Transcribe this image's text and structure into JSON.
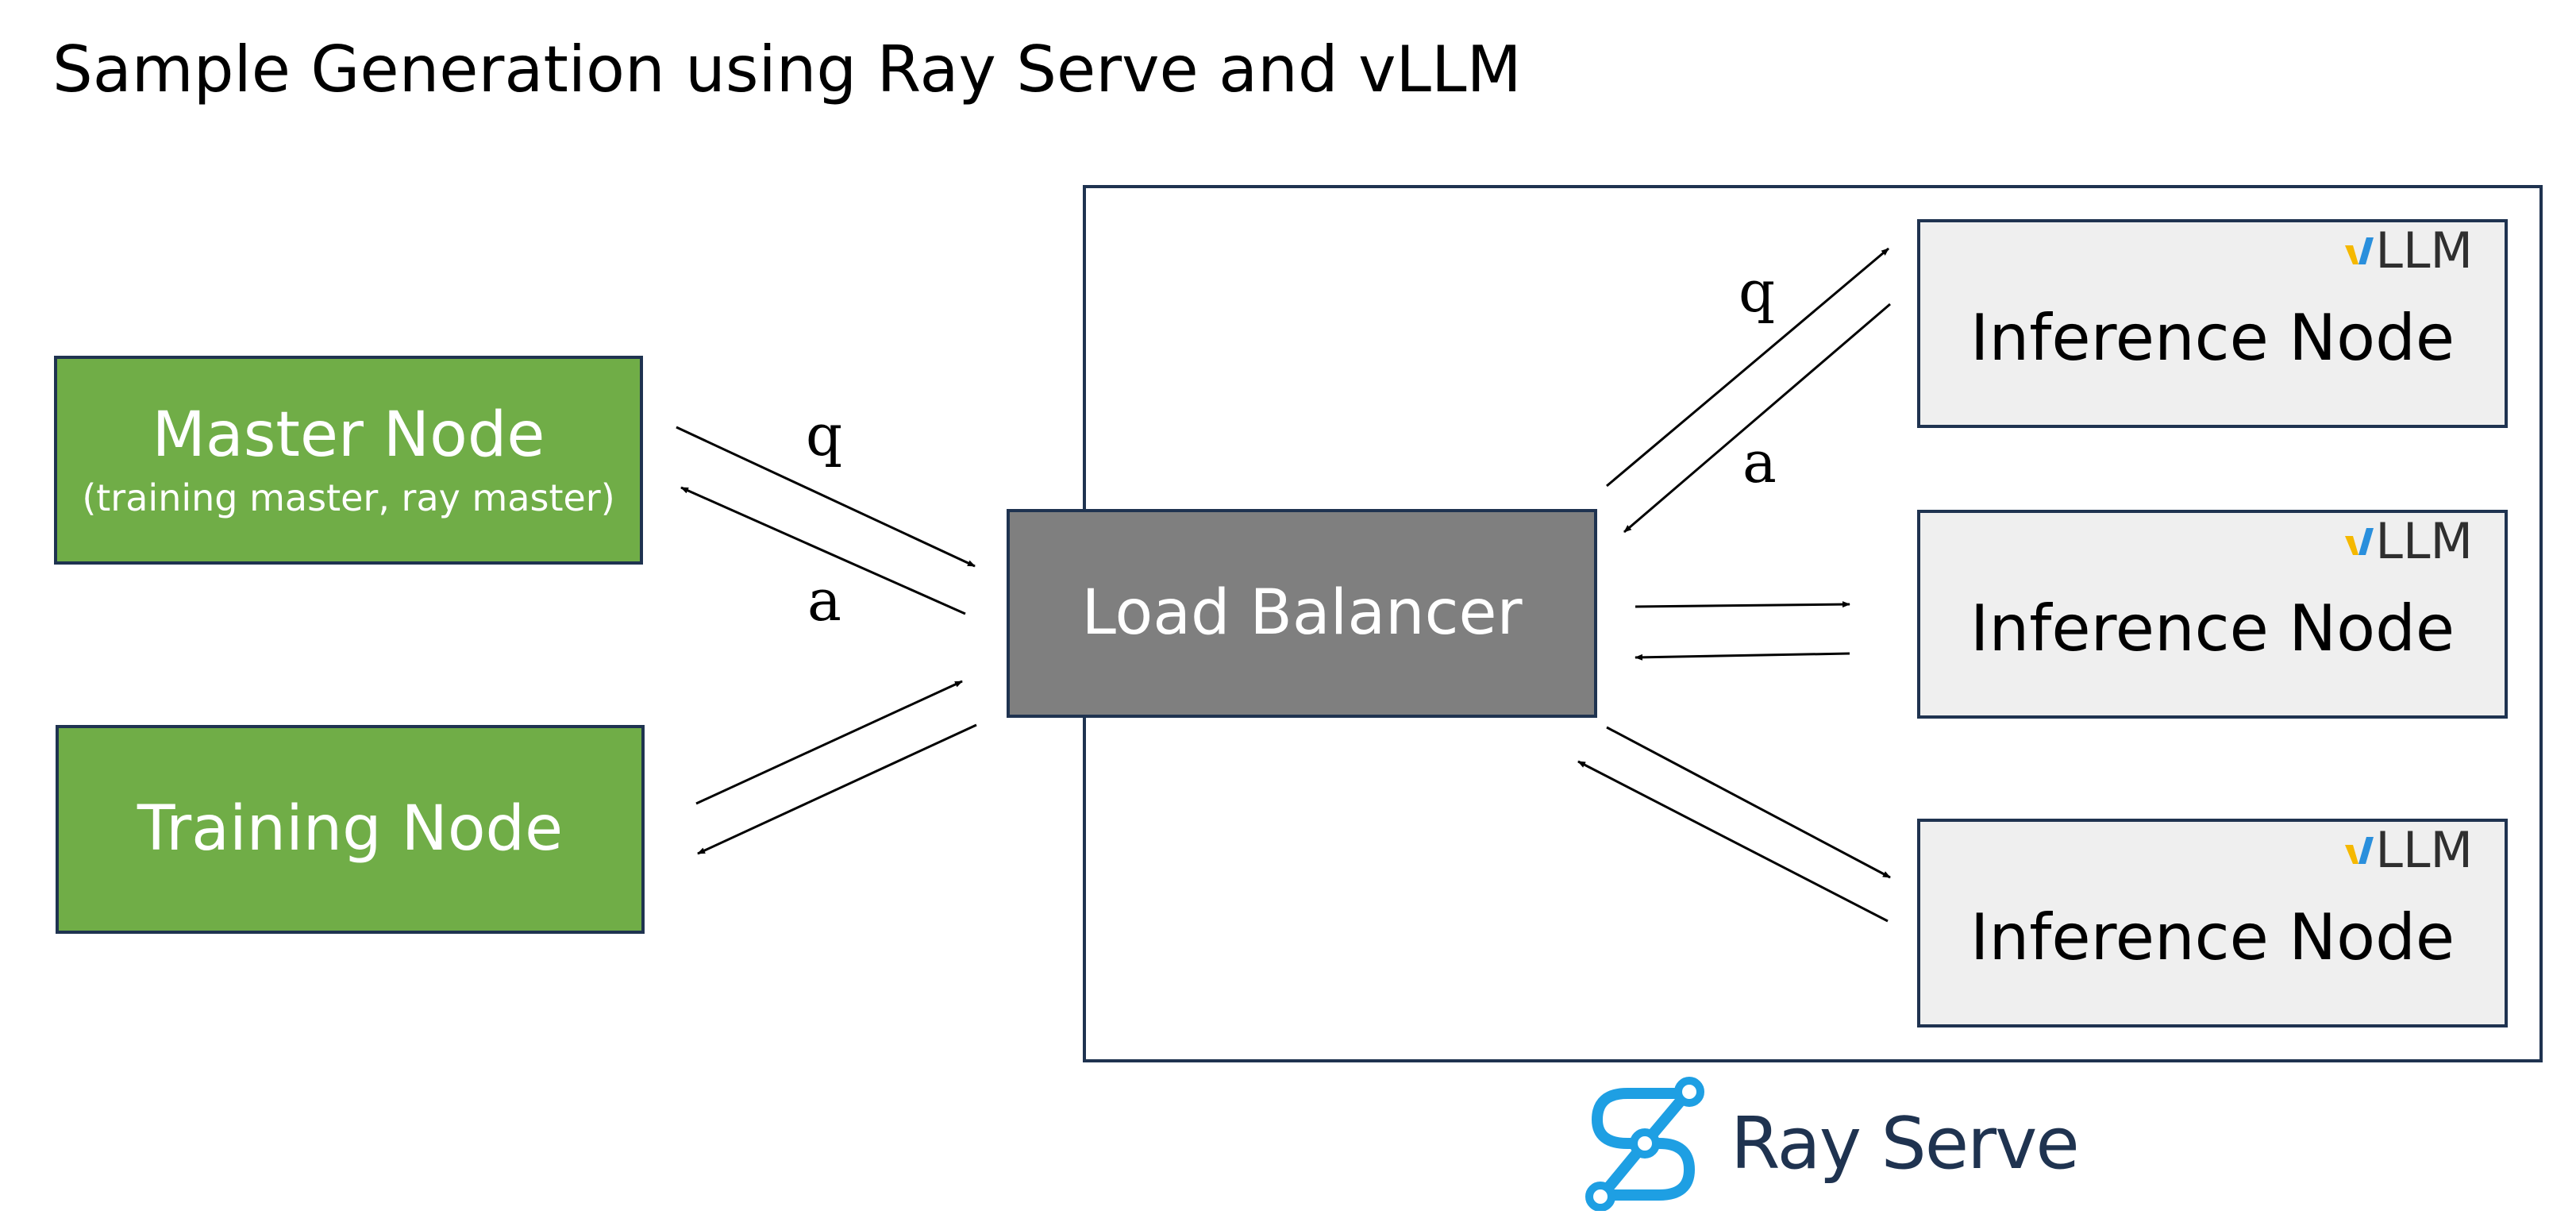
{
  "title": "Sample Generation using Ray Serve and vLLM",
  "master_node": {
    "title": "Master Node",
    "subtitle": "(training master, ray master)"
  },
  "training_node": {
    "title": "Training Node"
  },
  "load_balancer": {
    "title": "Load Balancer"
  },
  "inference_nodes": [
    {
      "title": "Inference Node",
      "badge": "LLM"
    },
    {
      "title": "Inference Node",
      "badge": "LLM"
    },
    {
      "title": "Inference Node",
      "badge": "LLM"
    }
  ],
  "arrow_labels": {
    "master_q": "q",
    "master_a": "a",
    "inference_q": "q",
    "inference_a": "a"
  },
  "logo": {
    "text": "Ray Serve",
    "icon": "ray-serve-logo-icon"
  },
  "colors": {
    "green": "#70ad47",
    "grey": "#7f7f7f",
    "light": "#efefef",
    "border": "#1f3350",
    "logo_blue": "#1e9fe3",
    "vllm_yellow": "#f5b800",
    "vllm_blue": "#2a8fdc"
  }
}
